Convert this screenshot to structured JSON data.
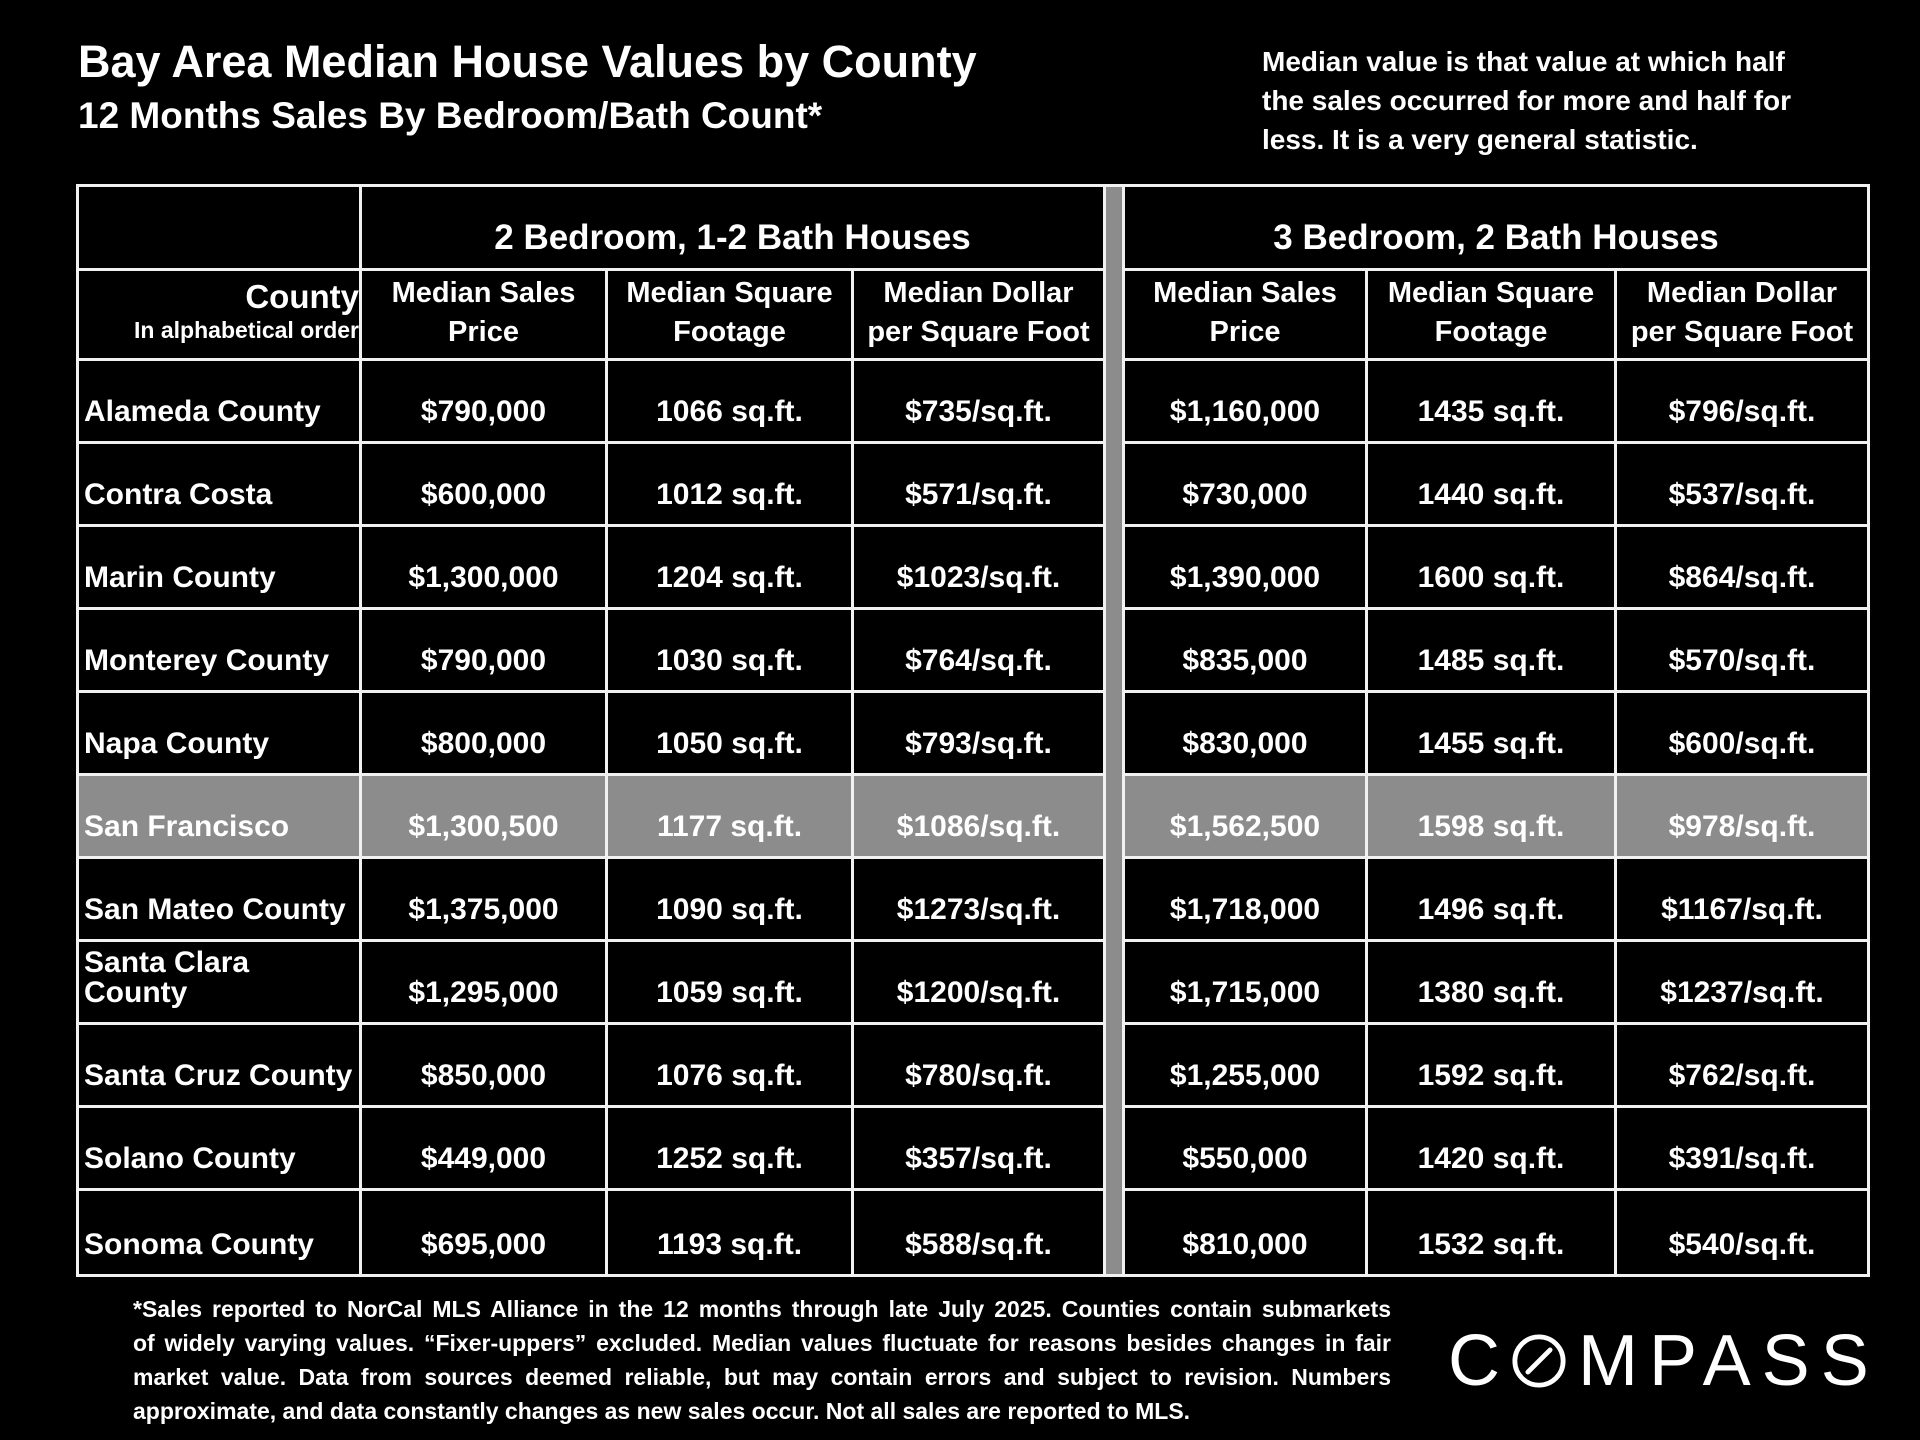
{
  "colors": {
    "background": "#000000",
    "text": "#ffffff",
    "highlight_row": "#8C8C8C",
    "grid_line": "#F1F1F1"
  },
  "header": {
    "title": "Bay Area Median House Values by County",
    "subtitle": "12 Months Sales By Bedroom/Bath Count*"
  },
  "note_lines": [
    "Median value is that value at which half",
    "the sales occurred for more and half for",
    "less. It is a very general statistic."
  ],
  "table": {
    "group1_header": "2 Bedroom, 1-2 Bath Houses",
    "group2_header": "3 Bedroom, 2 Bath Houses",
    "county_title": "County",
    "county_subtitle": "In alphabetical order",
    "col_sales": "Median Sales\nPrice",
    "col_sqft": "Median Square\nFootage",
    "col_dollar": "Median Dollar\nper Square Foot"
  },
  "chart_data": {
    "type": "table",
    "title": "Bay Area Median House Values by County",
    "subtitle": "12 Months Sales By Bedroom/Bath Count*",
    "column_groups": [
      "2 Bedroom, 1-2 Bath Houses",
      "3 Bedroom, 2 Bath Houses"
    ],
    "columns": [
      "County",
      "Median Sales Price",
      "Median Square Footage",
      "Median Dollar per Square Foot",
      "Median Sales Price",
      "Median Square Footage",
      "Median Dollar per Square Foot"
    ],
    "rows": [
      {
        "county": "Alameda County",
        "bed2": [
          "$790,000",
          "1066 sq.ft.",
          "$735/sq.ft."
        ],
        "bed3": [
          "$1,160,000",
          "1435 sq.ft.",
          "$796/sq.ft."
        ],
        "highlight": false
      },
      {
        "county": "Contra Costa",
        "bed2": [
          "$600,000",
          "1012 sq.ft.",
          "$571/sq.ft."
        ],
        "bed3": [
          "$730,000",
          "1440 sq.ft.",
          "$537/sq.ft."
        ],
        "highlight": false
      },
      {
        "county": "Marin County",
        "bed2": [
          "$1,300,000",
          "1204 sq.ft.",
          "$1023/sq.ft."
        ],
        "bed3": [
          "$1,390,000",
          "1600 sq.ft.",
          "$864/sq.ft."
        ],
        "highlight": false
      },
      {
        "county": "Monterey County",
        "bed2": [
          "$790,000",
          "1030 sq.ft.",
          "$764/sq.ft."
        ],
        "bed3": [
          "$835,000",
          "1485 sq.ft.",
          "$570/sq.ft."
        ],
        "highlight": false
      },
      {
        "county": "Napa County",
        "bed2": [
          "$800,000",
          "1050 sq.ft.",
          "$793/sq.ft."
        ],
        "bed3": [
          "$830,000",
          "1455 sq.ft.",
          "$600/sq.ft."
        ],
        "highlight": false
      },
      {
        "county": "San Francisco",
        "bed2": [
          "$1,300,500",
          "1177 sq.ft.",
          "$1086/sq.ft."
        ],
        "bed3": [
          "$1,562,500",
          "1598 sq.ft.",
          "$978/sq.ft."
        ],
        "highlight": true
      },
      {
        "county": "San Mateo County",
        "bed2": [
          "$1,375,000",
          "1090 sq.ft.",
          "$1273/sq.ft."
        ],
        "bed3": [
          "$1,718,000",
          "1496 sq.ft.",
          "$1167/sq.ft."
        ],
        "highlight": false
      },
      {
        "county": "Santa Clara County",
        "bed2": [
          "$1,295,000",
          "1059 sq.ft.",
          "$1200/sq.ft."
        ],
        "bed3": [
          "$1,715,000",
          "1380 sq.ft.",
          "$1237/sq.ft."
        ],
        "highlight": false
      },
      {
        "county": "Santa Cruz County",
        "bed2": [
          "$850,000",
          "1076 sq.ft.",
          "$780/sq.ft."
        ],
        "bed3": [
          "$1,255,000",
          "1592 sq.ft.",
          "$762/sq.ft."
        ],
        "highlight": false
      },
      {
        "county": "Solano County",
        "bed2": [
          "$449,000",
          "1252 sq.ft.",
          "$357/sq.ft."
        ],
        "bed3": [
          "$550,000",
          "1420 sq.ft.",
          "$391/sq.ft."
        ],
        "highlight": false
      },
      {
        "county": "Sonoma County",
        "bed2": [
          "$695,000",
          "1193 sq.ft.",
          "$588/sq.ft."
        ],
        "bed3": [
          "$810,000",
          "1532 sq.ft.",
          "$540/sq.ft."
        ],
        "highlight": false
      }
    ]
  },
  "footnote": {
    "lines": [
      "*Sales reported to NorCal MLS Alliance in the 12 months through late July 2025. Counties contain submarkets",
      "of widely varying values. “Fixer-uppers” excluded. Median values fluctuate for reasons besides changes in fair",
      "market value. Data from sources deemed reliable, but may contain errors and subject to revision.  Numbers",
      "approximate, and data constantly changes as new sales occur. Not all sales are reported to MLS."
    ]
  },
  "logo": {
    "text": "COMPASS",
    "before_o": "C",
    "after_o": "MPASS"
  }
}
